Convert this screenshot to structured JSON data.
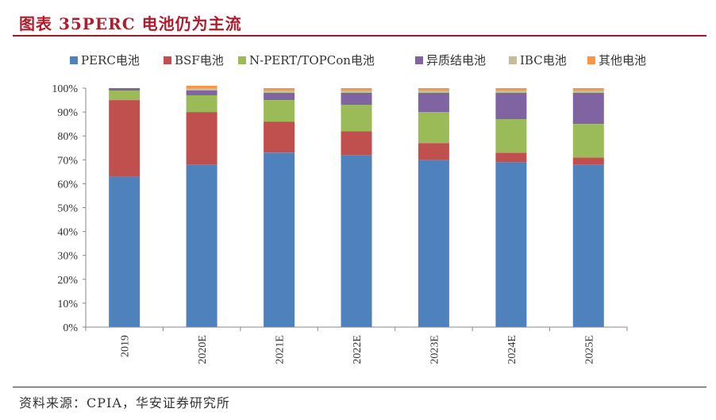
{
  "header": {
    "title": "图表 35PERC 电池仍为主流"
  },
  "footer": {
    "source": "资料来源：CPIA，华安证券研究所"
  },
  "chart_data": {
    "type": "bar",
    "stacked": true,
    "categories": [
      "2019",
      "2020E",
      "2021E",
      "2022E",
      "2023E",
      "2024E",
      "2025E"
    ],
    "y_ticks": [
      "0%",
      "10%",
      "20%",
      "30%",
      "40%",
      "50%",
      "60%",
      "70%",
      "80%",
      "90%",
      "100%"
    ],
    "ylim": [
      0,
      100
    ],
    "grid": false,
    "legend_position": "top",
    "series": [
      {
        "name": "PERC电池",
        "color": "#4f81bd",
        "values": [
          63,
          68,
          73,
          72,
          70,
          69,
          68
        ]
      },
      {
        "name": "BSF电池",
        "color": "#c0504d",
        "values": [
          32,
          22,
          13,
          10,
          7,
          4,
          3
        ]
      },
      {
        "name": "N-PERT/TOPCon电池",
        "color": "#9bbb59",
        "values": [
          4,
          7,
          9,
          11,
          13,
          14,
          14
        ]
      },
      {
        "name": "异质结电池",
        "color": "#8064a2",
        "values": [
          1,
          2,
          3,
          5,
          8,
          11,
          13
        ]
      },
      {
        "name": "IBC电池",
        "color": "#c4bd97",
        "values": [
          0,
          1,
          1,
          1,
          1,
          1,
          1
        ]
      },
      {
        "name": "其他电池",
        "color": "#f79646",
        "values": [
          0,
          1,
          1,
          1,
          1,
          1,
          1
        ]
      }
    ]
  }
}
